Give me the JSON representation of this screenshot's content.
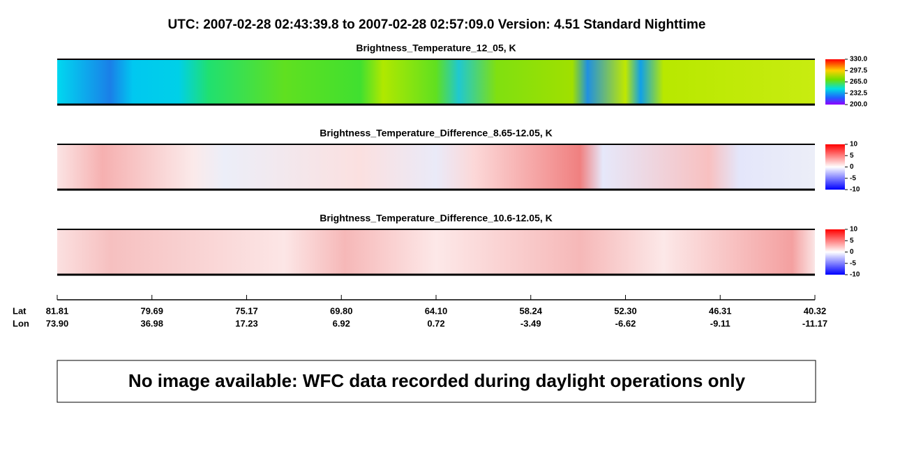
{
  "header": {
    "title": "UTC:  2007-02-28   02:43:39.8  to  2007-02-28   02:57:09.0    Version: 4.51  Standard Nighttime"
  },
  "panels": [
    {
      "title": "Brightness_Temperature_12_05, K",
      "colorbar_ticks": [
        "330.0",
        "297.5",
        "265.0",
        "232.5",
        "200.0"
      ]
    },
    {
      "title": "Brightness_Temperature_Difference_8.65-12.05, K",
      "colorbar_ticks": [
        "10",
        "5",
        "0",
        "-5",
        "-10"
      ]
    },
    {
      "title": "Brightness_Temperature_Difference_10.6-12.05, K",
      "colorbar_ticks": [
        "10",
        "5",
        "0",
        "-5",
        "-10"
      ]
    }
  ],
  "axis": {
    "lat_label": "Lat",
    "lon_label": "Lon",
    "lat": [
      "81.81",
      "79.69",
      "75.17",
      "69.80",
      "64.10",
      "58.24",
      "52.30",
      "46.31",
      "40.32"
    ],
    "lon": [
      "73.90",
      "36.98",
      "17.23",
      "6.92",
      "0.72",
      "-3.49",
      "-6.62",
      "-9.11",
      "-11.17"
    ]
  },
  "message": "No image available: WFC data recorded during daylight operations only"
}
